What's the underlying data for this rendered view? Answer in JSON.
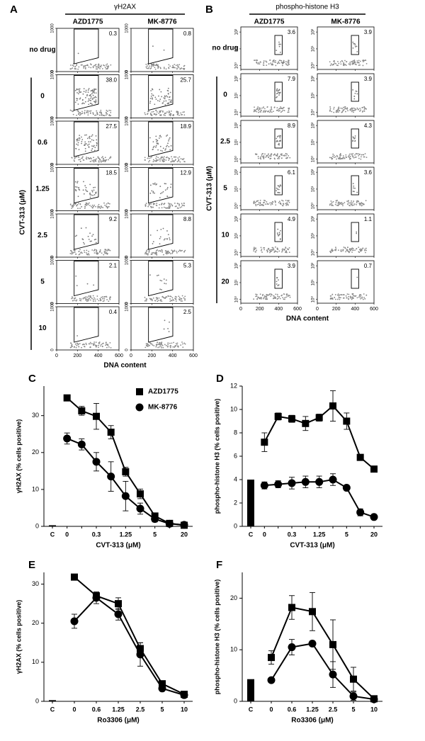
{
  "chart_data": [
    {
      "type": "flow-grid",
      "panel": "A",
      "title": "γH2AX",
      "row_axis_label": "CVT-313 (μM)",
      "rows": [
        "no drug",
        "0",
        "0.6",
        "1.25",
        "2.5",
        "5",
        "10"
      ],
      "series": [
        {
          "name": "AZD1775",
          "values": [
            0.3,
            38,
            27.5,
            18.5,
            9.2,
            2.1,
            0.4
          ],
          "value_labels": [
            "0.3",
            "38.0",
            "27.5",
            "18.5",
            "9.2",
            "2.1",
            "0.4"
          ]
        },
        {
          "name": "MK-8776",
          "values": [
            0.8,
            25.7,
            18.9,
            12.9,
            8.8,
            5.3,
            2.5
          ]
        }
      ],
      "xlabel": "DNA content",
      "xlim": [
        0,
        600
      ],
      "xticks": [
        0,
        200,
        400,
        600
      ],
      "ylim": [
        0,
        1000
      ],
      "yticks": [
        0,
        1000
      ],
      "gate": "polygon"
    },
    {
      "type": "flow-grid",
      "panel": "B",
      "title": "phospho-histone H3",
      "row_axis_label": "CVT-313 (μM)",
      "rows": [
        "no drug",
        "0",
        "2.5",
        "5",
        "10",
        "20"
      ],
      "series": [
        {
          "name": "AZD1775",
          "values": [
            3.6,
            7.9,
            8.9,
            6.1,
            4.9,
            3.9
          ]
        },
        {
          "name": "MK-8776",
          "values": [
            3.9,
            3.9,
            4.3,
            3.6,
            1.1,
            0.7
          ]
        }
      ],
      "xlabel": "DNA content",
      "xlim": [
        0,
        600
      ],
      "xticks": [
        0,
        200,
        400,
        600
      ],
      "ylim": [
        0.6,
        200
      ],
      "log_y": true,
      "yticks": [
        {
          "value": 1,
          "label": "10⁰"
        },
        {
          "value": 10,
          "label": "10¹"
        },
        {
          "value": 100,
          "label": "10²"
        }
      ],
      "gate": "rectangle"
    },
    {
      "type": "line",
      "panel": "C",
      "xlabel": "CVT-313 (μM)",
      "ylabel": "γH2AX (% cells positive)",
      "categories": [
        "C",
        "0",
        null,
        "0.3",
        null,
        "1.25",
        null,
        "5",
        null,
        "20"
      ],
      "control_value": 0.3,
      "control_color": "#000000",
      "ylim": [
        0,
        38
      ],
      "yticks": [
        0,
        10,
        20,
        30
      ],
      "legend": true,
      "series": [
        {
          "name": "AZD1775",
          "marker": "square",
          "color": "#000000",
          "values": [
            null,
            34.8,
            31.3,
            29.8,
            25.5,
            14.8,
            8.8,
            2.8,
            0.8,
            0.3
          ],
          "errors": [
            null,
            0.5,
            1.2,
            3.5,
            1.8,
            1.2,
            1.3,
            0.5,
            0.3,
            0.2
          ]
        },
        {
          "name": "MK-8776",
          "marker": "circle",
          "color": "#000000",
          "values": [
            null,
            23.8,
            22.2,
            17.5,
            13.5,
            8.2,
            4.8,
            2.0,
            0.7,
            0.4
          ],
          "errors": [
            null,
            1.5,
            1.5,
            2.5,
            4,
            4,
            1.5,
            0.8,
            0.3,
            0.2
          ]
        }
      ]
    },
    {
      "type": "line",
      "panel": "D",
      "xlabel": "CVT-313 (μM)",
      "ylabel": "phospho-histone H3 (% cells positive)",
      "categories": [
        "C",
        "0",
        null,
        "0.3",
        null,
        "1.25",
        null,
        "5",
        null,
        "20"
      ],
      "control_value": 4,
      "control_color": "#000000",
      "ylim": [
        0,
        12
      ],
      "yticks": [
        0,
        2,
        4,
        6,
        8,
        10,
        12
      ],
      "legend": false,
      "series": [
        {
          "name": "AZD1775",
          "marker": "square",
          "color": "#000000",
          "values": [
            null,
            7.2,
            9.4,
            9.2,
            8.8,
            9.3,
            10.3,
            9.0,
            5.9,
            4.9
          ],
          "errors": [
            null,
            0.8,
            0.3,
            0.3,
            0.6,
            0.3,
            1.3,
            0.7,
            0.2,
            0.2
          ]
        },
        {
          "name": "MK-8776",
          "marker": "circle",
          "color": "#000000",
          "values": [
            null,
            3.5,
            3.6,
            3.7,
            3.8,
            3.8,
            4.0,
            3.3,
            1.2,
            0.8
          ],
          "errors": [
            null,
            0.3,
            0.3,
            0.5,
            0.5,
            0.5,
            0.5,
            0.2,
            0.3,
            0.2
          ]
        }
      ]
    },
    {
      "type": "line",
      "panel": "E",
      "xlabel": "Ro3306 (μM)",
      "ylabel": "γH2AX (% cells positive)",
      "categories": [
        "C",
        "0",
        "0.6",
        "1.25",
        "2.5",
        "5",
        "10"
      ],
      "control_value": 0.3,
      "control_color": "#000000",
      "ylim": [
        0,
        33
      ],
      "yticks": [
        0,
        10,
        20,
        30
      ],
      "legend": false,
      "series": [
        {
          "name": "AZD1775",
          "marker": "square",
          "color": "#000000",
          "values": [
            null,
            31.8,
            27,
            25,
            13.5,
            4.5,
            1.8
          ],
          "errors": [
            null,
            0.5,
            0.5,
            1.5,
            1.5,
            0.5,
            0.5
          ]
        },
        {
          "name": "MK-8776",
          "marker": "circle",
          "color": "#000000",
          "values": [
            null,
            20.5,
            26.5,
            22.3,
            12,
            3.3,
            1.6
          ],
          "errors": [
            null,
            1.8,
            1.5,
            1.5,
            3,
            0.5,
            0.5
          ]
        }
      ]
    },
    {
      "type": "line",
      "panel": "F",
      "xlabel": "Ro3306 (μM)",
      "ylabel": "phospho-histone H3 (% cells positive)",
      "categories": [
        "C",
        "0",
        "0.6",
        "1.25",
        "2.5",
        "5",
        "10"
      ],
      "control_value": 4.3,
      "control_color": "#000000",
      "ylim": [
        0,
        25
      ],
      "yticks": [
        0,
        10,
        20
      ],
      "legend": false,
      "series": [
        {
          "name": "AZD1775",
          "marker": "square",
          "color": "#000000",
          "values": [
            null,
            8.5,
            18.2,
            17.4,
            11,
            4.3,
            0.5
          ],
          "errors": [
            null,
            1.3,
            2.3,
            3.7,
            4.8,
            2.3,
            0.3
          ]
        },
        {
          "name": "MK-8776",
          "marker": "circle",
          "color": "#000000",
          "values": [
            null,
            4.1,
            10.5,
            11.2,
            5.2,
            1.0,
            0.4
          ],
          "errors": [
            null,
            0.3,
            1.5,
            0.5,
            2.5,
            0.8,
            0.3
          ]
        }
      ]
    }
  ]
}
